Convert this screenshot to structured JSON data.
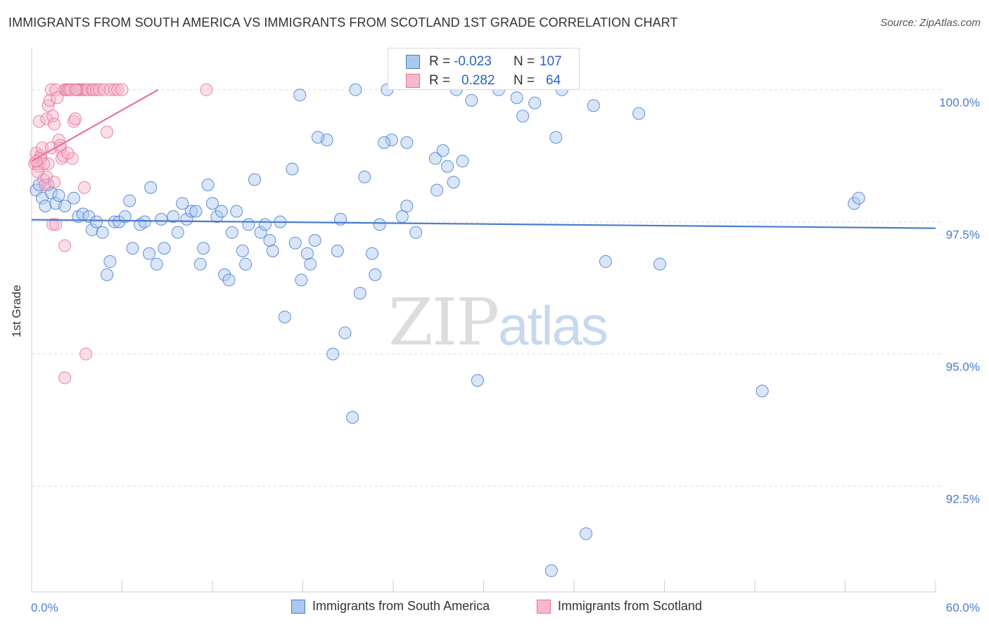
{
  "header": {
    "title": "IMMIGRANTS FROM SOUTH AMERICA VS IMMIGRANTS FROM SCOTLAND 1ST GRADE CORRELATION CHART",
    "source": "Source: ZipAtlas.com"
  },
  "watermark": {
    "zip": "ZIP",
    "atlas": "atlas"
  },
  "colors": {
    "blue": "#4a7bd0",
    "blue_fill": "#aac8ef",
    "pink": "#e8729a",
    "pink_fill": "#f5b8cc",
    "grid": "#dddddd"
  },
  "stats": {
    "rows": [
      {
        "r_label": "R =",
        "r_value": "-0.023",
        "n_label": "N =",
        "n_value": "107"
      },
      {
        "r_label": "R =",
        "r_value": "0.282",
        "n_label": "N =",
        "n_value": "64"
      }
    ]
  },
  "chart_data": {
    "type": "scatter",
    "title": "IMMIGRANTS FROM SOUTH AMERICA VS IMMIGRANTS FROM SCOTLAND 1ST GRADE CORRELATION CHART",
    "xlabel": "",
    "ylabel": "1st Grade",
    "xlim": [
      0,
      60
    ],
    "ylim": [
      90.5,
      100.9
    ],
    "x_tick_labels": [
      "0.0%",
      "60.0%"
    ],
    "y_ticks": [
      100.0,
      97.5,
      95.0,
      92.5
    ],
    "y_tick_labels": [
      "100.0%",
      "97.5%",
      "95.0%",
      "92.5%"
    ],
    "grid": true,
    "legend_position": "bottom",
    "series": [
      {
        "name": "Immigrants from South America",
        "color": "#4a7bd0",
        "trend": {
          "x": [
            0,
            60
          ],
          "y": [
            97.54,
            97.38
          ]
        },
        "points": [
          [
            0.3,
            98.1
          ],
          [
            0.5,
            98.2
          ],
          [
            0.7,
            97.95
          ],
          [
            0.9,
            97.8
          ],
          [
            1.1,
            98.2
          ],
          [
            1.3,
            98.05
          ],
          [
            1.6,
            97.85
          ],
          [
            1.8,
            98.0
          ],
          [
            2.2,
            97.8
          ],
          [
            2.8,
            97.95
          ],
          [
            3.1,
            97.6
          ],
          [
            3.4,
            97.65
          ],
          [
            3.8,
            97.6
          ],
          [
            4.0,
            97.35
          ],
          [
            4.3,
            97.5
          ],
          [
            4.7,
            97.3
          ],
          [
            5.2,
            96.75
          ],
          [
            5.0,
            96.5
          ],
          [
            5.5,
            97.5
          ],
          [
            5.8,
            97.5
          ],
          [
            6.2,
            97.6
          ],
          [
            6.5,
            97.9
          ],
          [
            6.7,
            97.0
          ],
          [
            7.2,
            97.45
          ],
          [
            7.5,
            97.5
          ],
          [
            7.8,
            96.9
          ],
          [
            7.9,
            98.15
          ],
          [
            8.3,
            96.7
          ],
          [
            8.6,
            97.55
          ],
          [
            8.8,
            97.0
          ],
          [
            9.4,
            97.6
          ],
          [
            9.7,
            97.3
          ],
          [
            10.0,
            97.85
          ],
          [
            10.3,
            97.55
          ],
          [
            10.6,
            97.7
          ],
          [
            10.9,
            97.7
          ],
          [
            11.2,
            96.7
          ],
          [
            11.4,
            97.0
          ],
          [
            11.7,
            98.2
          ],
          [
            12.0,
            97.85
          ],
          [
            12.3,
            97.6
          ],
          [
            12.6,
            97.7
          ],
          [
            12.8,
            96.5
          ],
          [
            13.1,
            96.4
          ],
          [
            13.3,
            97.3
          ],
          [
            13.6,
            97.7
          ],
          [
            14.0,
            96.95
          ],
          [
            14.2,
            96.7
          ],
          [
            14.4,
            97.45
          ],
          [
            14.8,
            98.3
          ],
          [
            15.2,
            97.3
          ],
          [
            15.5,
            97.45
          ],
          [
            15.8,
            97.15
          ],
          [
            16.0,
            96.95
          ],
          [
            16.5,
            97.5
          ],
          [
            16.8,
            95.7
          ],
          [
            17.3,
            98.5
          ],
          [
            17.5,
            97.1
          ],
          [
            17.8,
            99.9
          ],
          [
            17.9,
            96.4
          ],
          [
            18.3,
            96.9
          ],
          [
            18.5,
            96.7
          ],
          [
            18.8,
            97.15
          ],
          [
            19.6,
            99.05
          ],
          [
            20.0,
            95.0
          ],
          [
            20.3,
            96.95
          ],
          [
            20.5,
            97.55
          ],
          [
            20.8,
            95.4
          ],
          [
            21.3,
            93.8
          ],
          [
            21.5,
            100.0
          ],
          [
            21.8,
            96.15
          ],
          [
            22.1,
            98.35
          ],
          [
            22.6,
            96.9
          ],
          [
            22.8,
            96.5
          ],
          [
            23.1,
            97.45
          ],
          [
            23.6,
            100.0
          ],
          [
            23.9,
            99.05
          ],
          [
            24.6,
            97.6
          ],
          [
            24.9,
            97.8
          ],
          [
            24.9,
            99.0
          ],
          [
            25.5,
            97.3
          ],
          [
            26.8,
            98.7
          ],
          [
            26.9,
            98.1
          ],
          [
            27.3,
            98.85
          ],
          [
            27.6,
            98.55
          ],
          [
            28.0,
            98.25
          ],
          [
            28.2,
            100.0
          ],
          [
            28.6,
            98.65
          ],
          [
            29.2,
            99.8
          ],
          [
            29.6,
            94.5
          ],
          [
            32.2,
            99.85
          ],
          [
            32.6,
            99.5
          ],
          [
            33.4,
            99.75
          ],
          [
            34.8,
            99.1
          ],
          [
            35.2,
            100.0
          ],
          [
            36.8,
            91.6
          ],
          [
            37.3,
            99.7
          ],
          [
            38.1,
            96.75
          ],
          [
            34.5,
            90.9
          ],
          [
            40.3,
            99.55
          ],
          [
            41.7,
            96.7
          ],
          [
            48.5,
            94.3
          ],
          [
            54.6,
            97.85
          ],
          [
            54.9,
            97.95
          ],
          [
            23.4,
            99.0
          ],
          [
            19.0,
            99.1
          ],
          [
            31.0,
            100.0
          ]
        ]
      },
      {
        "name": "Immigrants from Scotland",
        "color": "#e8729a",
        "trend": {
          "x": [
            0,
            8.4
          ],
          "y": [
            98.65,
            100.0
          ]
        },
        "points": [
          [
            0.2,
            98.6
          ],
          [
            0.3,
            98.8
          ],
          [
            0.4,
            98.6
          ],
          [
            0.5,
            98.55
          ],
          [
            0.6,
            98.75
          ],
          [
            0.7,
            98.9
          ],
          [
            0.8,
            98.3
          ],
          [
            0.9,
            98.2
          ],
          [
            1.0,
            98.35
          ],
          [
            1.1,
            98.6
          ],
          [
            0.5,
            99.4
          ],
          [
            1.0,
            99.45
          ],
          [
            1.1,
            99.7
          ],
          [
            1.2,
            99.8
          ],
          [
            1.3,
            100.0
          ],
          [
            1.4,
            99.5
          ],
          [
            1.5,
            99.35
          ],
          [
            1.6,
            100.0
          ],
          [
            1.7,
            99.85
          ],
          [
            1.8,
            99.05
          ],
          [
            1.9,
            98.9
          ],
          [
            2.0,
            98.7
          ],
          [
            2.1,
            98.75
          ],
          [
            2.2,
            100.0
          ],
          [
            2.3,
            100.0
          ],
          [
            2.4,
            100.0
          ],
          [
            2.5,
            100.0
          ],
          [
            2.6,
            100.0
          ],
          [
            2.7,
            98.7
          ],
          [
            2.8,
            99.4
          ],
          [
            2.9,
            99.45
          ],
          [
            3.0,
            100.0
          ],
          [
            3.1,
            100.0
          ],
          [
            3.2,
            100.0
          ],
          [
            3.4,
            100.0
          ],
          [
            3.5,
            98.15
          ],
          [
            3.6,
            100.0
          ],
          [
            3.7,
            100.0
          ],
          [
            4.0,
            100.0
          ],
          [
            4.1,
            100.0
          ],
          [
            4.3,
            100.0
          ],
          [
            4.5,
            100.0
          ],
          [
            4.8,
            100.0
          ],
          [
            5.0,
            99.2
          ],
          [
            5.2,
            100.0
          ],
          [
            5.5,
            100.0
          ],
          [
            5.7,
            100.0
          ],
          [
            6.0,
            100.0
          ],
          [
            3.0,
            100.0
          ],
          [
            2.9,
            100.0
          ],
          [
            0.6,
            98.7
          ],
          [
            0.8,
            98.6
          ],
          [
            1.3,
            98.9
          ],
          [
            1.5,
            98.25
          ],
          [
            2.4,
            98.8
          ],
          [
            0.4,
            98.45
          ],
          [
            1.4,
            97.45
          ],
          [
            1.6,
            97.45
          ],
          [
            2.2,
            97.05
          ],
          [
            2.2,
            94.55
          ],
          [
            3.6,
            95.0
          ],
          [
            11.6,
            100.0
          ],
          [
            0.3,
            98.65
          ],
          [
            1.9,
            98.95
          ]
        ]
      }
    ]
  }
}
